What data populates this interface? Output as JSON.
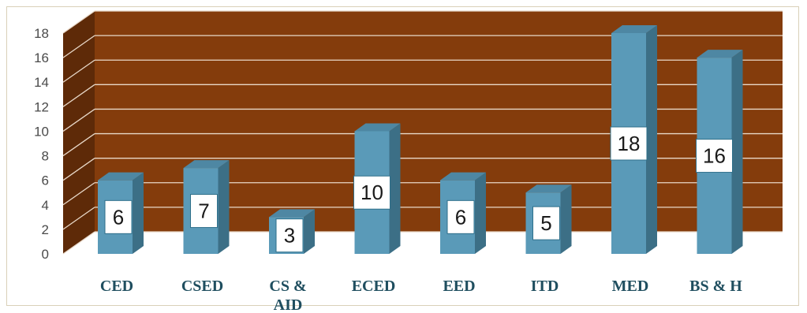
{
  "chart_data": {
    "type": "bar",
    "style": "3d-column",
    "categories": [
      "CED",
      "CSED",
      "CS & AID",
      "ECED",
      "EED",
      "ITD",
      "MED",
      "BS & H"
    ],
    "category_label_lines": [
      [
        "CED"
      ],
      [
        "CSED"
      ],
      [
        "CS &",
        "AID"
      ],
      [
        "ECED"
      ],
      [
        "EED"
      ],
      [
        "ITD"
      ],
      [
        "MED"
      ],
      [
        "BS & H"
      ]
    ],
    "values": [
      6,
      7,
      3,
      10,
      6,
      5,
      18,
      16
    ],
    "data_labels": [
      "6",
      "7",
      "3",
      "10",
      "6",
      "5",
      "18",
      "16"
    ],
    "yticks": [
      "0",
      "2",
      "4",
      "6",
      "8",
      "10",
      "12",
      "14",
      "16",
      "18"
    ],
    "ylim": [
      0,
      18
    ],
    "grid": true,
    "legend": "none",
    "title": "",
    "xlabel": "",
    "ylabel": "",
    "colors": {
      "wall": "#843c0c",
      "wall_side": "#5e2a08",
      "bar_front": "#5a9ab8",
      "bar_side": "#3c6f86",
      "bar_top": "#4e87a3",
      "gridline": "#e8d8c8",
      "category_text": "#1f4e5f"
    }
  }
}
